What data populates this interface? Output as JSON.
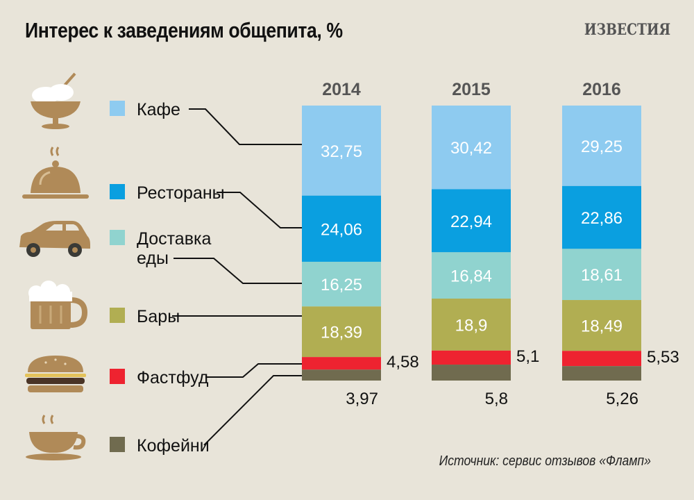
{
  "title": "Интерес к заведениям общепита, %",
  "brand": "ИЗВЕСТИЯ",
  "source": "Источник: сервис отзывов «Фламп»",
  "icons": [
    "bowl-icon",
    "cloche-icon",
    "car-icon",
    "beer-mug-icon",
    "burger-icon",
    "coffee-cup-icon"
  ],
  "chart_data": {
    "type": "bar",
    "stacked": true,
    "categories": [
      "2014",
      "2015",
      "2016"
    ],
    "series": [
      {
        "name": "Кафе",
        "color": "#8ecbf0",
        "values": [
          32.75,
          30.42,
          29.25
        ],
        "labels": [
          "32,75",
          "30,42",
          "29,25"
        ]
      },
      {
        "name": "Рестораны",
        "color": "#0a9fe0",
        "values": [
          24.06,
          22.94,
          22.86
        ],
        "labels": [
          "24,06",
          "22,94",
          "22,86"
        ]
      },
      {
        "name": "Доставка\nеды",
        "color": "#90d3cf",
        "values": [
          16.25,
          16.84,
          18.61
        ],
        "labels": [
          "16,25",
          "16,84",
          "18,61"
        ]
      },
      {
        "name": "Бары",
        "color": "#b1ae52",
        "values": [
          18.39,
          18.9,
          18.49
        ],
        "labels": [
          "18,39",
          "18,9",
          "18,49"
        ]
      },
      {
        "name": "Фастфуд",
        "color": "#ee2330",
        "values": [
          4.58,
          5.1,
          5.53
        ],
        "labels": [
          "4,58",
          "5,1",
          "5,53"
        ]
      },
      {
        "name": "Кофейни",
        "color": "#706b4f",
        "values": [
          3.97,
          5.8,
          5.26
        ],
        "labels": [
          "3,97",
          "5,8",
          "5,26"
        ]
      }
    ]
  }
}
